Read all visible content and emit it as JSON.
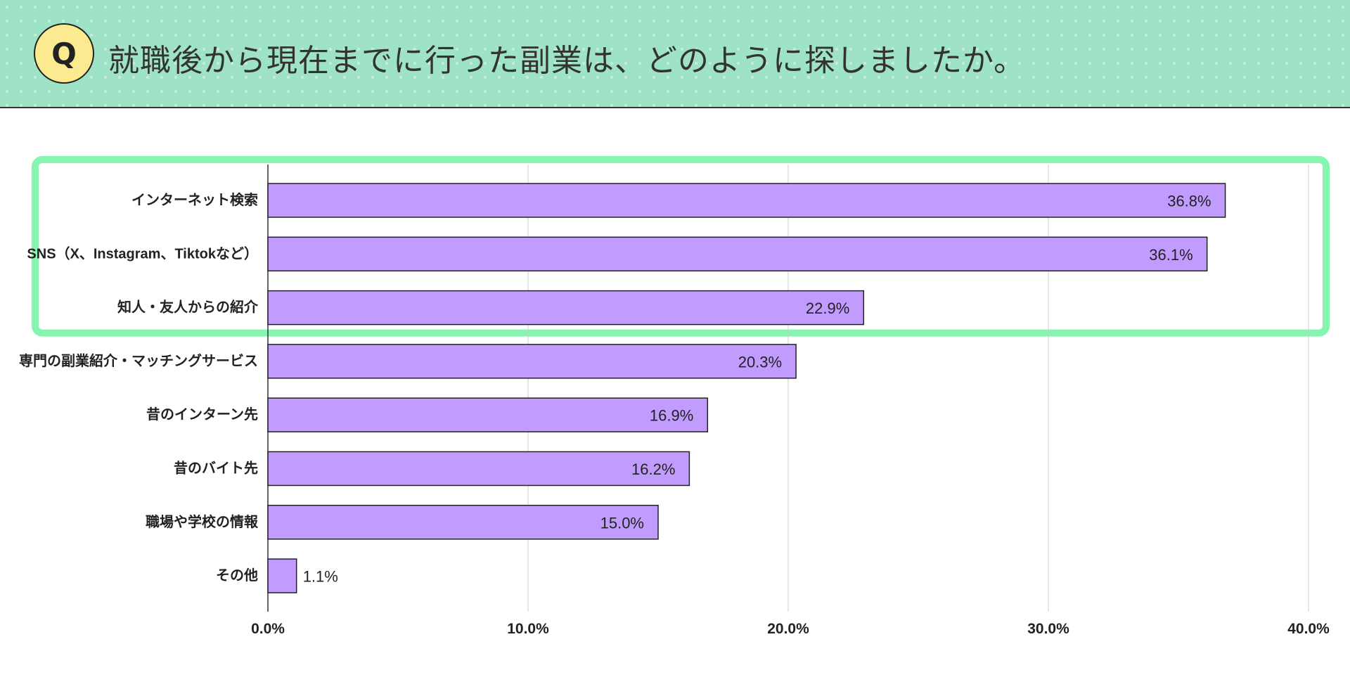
{
  "header": {
    "badge": "Q",
    "title": "就職後から現在までに行った副業は、どのように探しましたか。"
  },
  "colors": {
    "header_bg": "#9fe3c6",
    "badge_bg": "#fbea8f",
    "bar_fill": "#c29bff",
    "bar_stroke": "#222222",
    "highlight": "#86f5ae",
    "grid": "#cccccc"
  },
  "chart_data": {
    "type": "bar",
    "orientation": "horizontal",
    "title": "就職後から現在までに行った副業は、どのように探しましたか。",
    "categories": [
      "インターネット検索",
      "SNS（X、Instagram、Tiktokなど）",
      "知人・友人からの紹介",
      "専門の副業紹介・マッチングサービス",
      "昔のインターン先",
      "昔のバイト先",
      "職場や学校の情報",
      "その他"
    ],
    "values": [
      36.8,
      36.1,
      22.9,
      20.3,
      16.9,
      16.2,
      15.0,
      1.1
    ],
    "value_labels": [
      "36.8%",
      "36.1%",
      "22.9%",
      "20.3%",
      "16.9%",
      "16.2%",
      "15.0%",
      "1.1%"
    ],
    "xlim": [
      0,
      40
    ],
    "xticks": [
      0,
      10,
      20,
      30,
      40
    ],
    "xtick_labels": [
      "0.0%",
      "10.0%",
      "20.0%",
      "30.0%",
      "40.0%"
    ],
    "xlabel": "",
    "ylabel": "",
    "grid": true,
    "highlighted_categories": [
      0,
      1,
      2
    ]
  }
}
